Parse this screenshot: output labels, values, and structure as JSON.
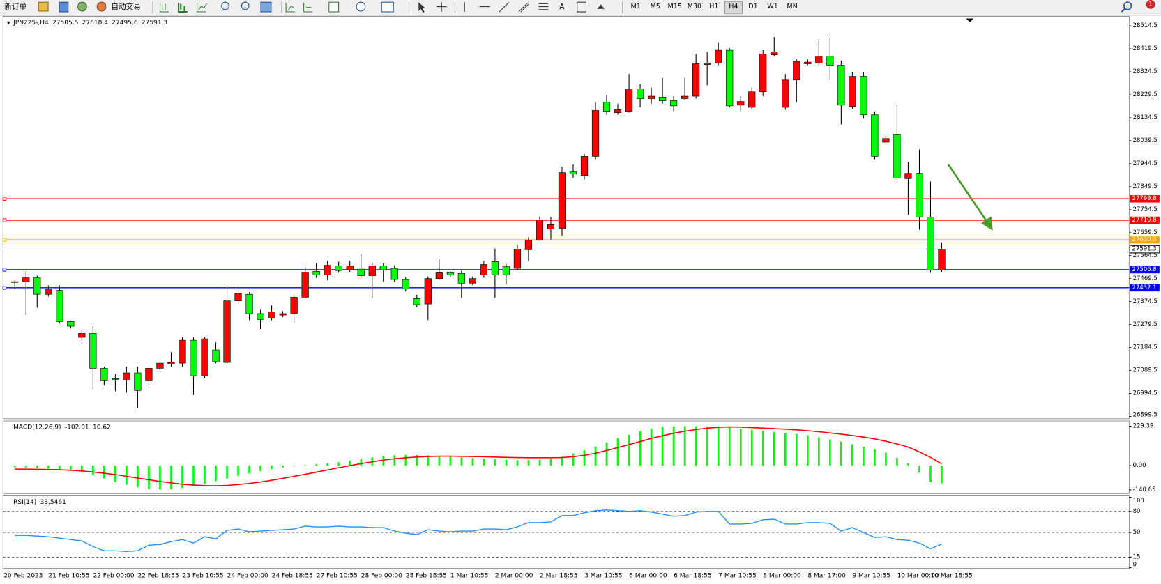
{
  "toolbar": {
    "new_order": "新订单",
    "auto_trading": "自动交易",
    "text_tool": "A",
    "timeframes": [
      "M1",
      "M5",
      "M15",
      "M30",
      "H1",
      "H4",
      "D1",
      "W1",
      "MN"
    ],
    "active_timeframe": "H4",
    "notifications": 1
  },
  "chart_data": [
    {
      "type": "candlestick",
      "title": "JPN225-,H4",
      "up_color": "#ff0000",
      "down_color": "#00ff00",
      "categories": [
        "20 Feb 2023",
        null,
        null,
        null,
        "21 Feb 10:55",
        null,
        null,
        null,
        "22 Feb 00:00",
        null,
        null,
        null,
        "22 Feb 18:55",
        null,
        null,
        null,
        "23 Feb 10:55",
        null,
        null,
        null,
        "24 Feb 00:00",
        null,
        null,
        null,
        "24 Feb 18:55",
        null,
        null,
        null,
        "27 Feb 10:55",
        null,
        null,
        null,
        "28 Feb 00:00",
        null,
        null,
        null,
        "28 Feb 18:55",
        null,
        null,
        null,
        "1 Mar 10:55",
        null,
        null,
        null,
        "2 Mar 00:00",
        null,
        null,
        null,
        "2 Mar 18:55",
        null,
        null,
        null,
        "3 Mar 10:55",
        null,
        null,
        null,
        "6 Mar 00:00",
        null,
        null,
        null,
        "6 Mar 18:55",
        null,
        null,
        null,
        "7 Mar 10:55",
        null,
        null,
        null,
        "8 Mar 00:00",
        null,
        null,
        null,
        "8 Mar 17:00",
        null,
        null,
        null,
        "9 Mar 10:55",
        null,
        null,
        null,
        "10 Mar 00:00",
        null,
        null,
        "10 Mar 18:55"
      ],
      "open": [
        27454,
        27457,
        27473,
        27405,
        27421,
        27292,
        27227,
        27243,
        27099,
        27056,
        27053,
        27080,
        27050,
        27099,
        27117,
        27120,
        27215,
        27068,
        27175,
        27123,
        27378,
        27405,
        27325,
        27307,
        27319,
        27325,
        27393,
        27500,
        27485,
        27522,
        27506,
        27509,
        27482,
        27522,
        27512,
        27466,
        27387,
        27365,
        27470,
        27494,
        27491,
        27451,
        27485,
        27540,
        27519,
        27512,
        27589,
        27629,
        27675,
        27678,
        27911,
        27896,
        27975,
        28199,
        28156,
        28162,
        28254,
        28214,
        28220,
        28205,
        28214,
        28224,
        28355,
        28361,
        28414,
        28187,
        28178,
        28242,
        28395,
        28178,
        28291,
        28358,
        28361,
        28389,
        28352,
        28181,
        28306,
        28147,
        28034,
        28067,
        27883,
        27905,
        27724,
        27505.5
      ],
      "high": [
        27463,
        27500,
        27482,
        27442,
        27442,
        27295,
        27258,
        27273,
        27105,
        27074,
        27105,
        27105,
        27108,
        27126,
        27166,
        27227,
        27227,
        27227,
        27206,
        27442,
        27433,
        27414,
        27341,
        27359,
        27335,
        27402,
        27519,
        27534,
        27543,
        27540,
        27543,
        27571,
        27534,
        27534,
        27525,
        27476,
        27402,
        27479,
        27549,
        27500,
        27503,
        27479,
        27543,
        27595,
        27531,
        27611,
        27641,
        27727,
        27724,
        27932,
        27942,
        27985,
        28199,
        28230,
        28193,
        28316,
        28276,
        28260,
        28300,
        28224,
        28300,
        28398,
        28407,
        28447,
        28423,
        28224,
        28260,
        28414,
        28469,
        28316,
        28377,
        28377,
        28453,
        28463,
        28371,
        28322,
        28322,
        28162,
        28061,
        28187,
        27954,
        28003,
        27871,
        27618.4
      ],
      "low": [
        27427,
        27319,
        27350,
        27396,
        27283,
        27264,
        27212,
        27013,
        27028,
        27004,
        26998,
        26936,
        27028,
        27090,
        27105,
        27105,
        26988,
        27059,
        27120,
        27120,
        27365,
        27298,
        27261,
        27298,
        27310,
        27286,
        27387,
        27473,
        27463,
        27494,
        27497,
        27473,
        27390,
        27457,
        27457,
        27417,
        27353,
        27298,
        27463,
        27476,
        27390,
        27442,
        27473,
        27390,
        27445,
        27506,
        27543,
        27626,
        27632,
        27647,
        27886,
        27880,
        27963,
        28147,
        28147,
        28156,
        28178,
        28193,
        28193,
        28162,
        28208,
        28214,
        28269,
        28352,
        28178,
        28162,
        28168,
        28224,
        28389,
        28168,
        28199,
        28352,
        28352,
        28291,
        28107,
        28172,
        28132,
        27963,
        28024,
        27877,
        27733,
        27672,
        27494,
        27495.6
      ],
      "close": [
        27457,
        27473,
        27405,
        27427,
        27292,
        27273,
        27243,
        27099,
        27050,
        27053,
        27080,
        27007,
        27099,
        27120,
        27123,
        27215,
        27068,
        27221,
        27126,
        27378,
        27408,
        27325,
        27301,
        27332,
        27325,
        27393,
        27497,
        27485,
        27525,
        27503,
        27522,
        27482,
        27522,
        27506,
        27466,
        27427,
        27362,
        27470,
        27494,
        27485,
        27451,
        27470,
        27528,
        27485,
        27485,
        27592,
        27629,
        27712,
        27693,
        27908,
        27902,
        27975,
        28165,
        28162,
        28168,
        28251,
        28214,
        28224,
        28205,
        28184,
        28224,
        28358,
        28361,
        28414,
        28184,
        28202,
        28242,
        28398,
        28407,
        28291,
        28368,
        28365,
        28389,
        28352,
        28187,
        28306,
        28147,
        27975,
        28049,
        27886,
        27905,
        27724,
        27505.5,
        27591.3
      ],
      "ylim": [
        26890.3,
        28554.3
      ],
      "yticks": [
        28514.5,
        28419.5,
        28324.5,
        28229.5,
        28134.5,
        28039.5,
        27944.5,
        27849.5,
        27754.5,
        27659.5,
        27564.5,
        27469.5,
        27374.5,
        27279.5,
        27184.5,
        27089.5,
        26994.5,
        26899.5
      ],
      "levels": [
        {
          "value": 27799.8,
          "color": "#ff0000"
        },
        {
          "value": 27710.8,
          "color": "#ff0000"
        },
        {
          "value": 27630.3,
          "color": "#ffa500"
        },
        {
          "value": 27506.8,
          "color": "#0000ff"
        },
        {
          "value": 27432.1,
          "color": "#0000ff"
        }
      ]
    },
    {
      "type": "macd",
      "title": "MACD(12,26,9)",
      "histogram_color": "#00ff00",
      "signal_color": "#ff0000",
      "histogram": [
        -10,
        -12,
        -14,
        -17,
        -22,
        -28,
        -38,
        -55,
        -75,
        -95,
        -110,
        -125,
        -135,
        -138,
        -136,
        -130,
        -118,
        -105,
        -90,
        -75,
        -60,
        -45,
        -32,
        -20,
        -10,
        -3,
        3,
        8,
        14,
        20,
        28,
        38,
        48,
        55,
        60,
        62,
        62,
        60,
        56,
        52,
        48,
        44,
        40,
        37,
        34,
        32,
        32,
        34,
        40,
        52,
        70,
        90,
        110,
        135,
        160,
        180,
        200,
        215,
        225,
        228,
        229.39,
        229,
        228,
        226,
        222,
        215,
        208,
        202,
        196,
        190,
        184,
        176,
        165,
        152,
        140,
        125,
        110,
        95,
        75,
        45,
        15,
        -40,
        -95,
        -102.01
      ],
      "signal": [
        -20,
        -20,
        -21,
        -22,
        -24,
        -27,
        -31,
        -37,
        -44,
        -52,
        -62,
        -72,
        -82,
        -92,
        -100,
        -108,
        -113,
        -116,
        -117,
        -115,
        -110,
        -103,
        -95,
        -85,
        -74,
        -62,
        -50,
        -38,
        -25,
        -12,
        0,
        12,
        22,
        32,
        40,
        46,
        50,
        53,
        55,
        55,
        54,
        53,
        52,
        50,
        48,
        47,
        46,
        46,
        46,
        47,
        52,
        60,
        72,
        88,
        105,
        122,
        140,
        158,
        174,
        188,
        200,
        210,
        218,
        223,
        225,
        224,
        221,
        218,
        215,
        212,
        208,
        203,
        197,
        190,
        183,
        175,
        166,
        155,
        142,
        126,
        108,
        80,
        48,
        10.62
      ],
      "ylim": [
        -162.2,
        259.5
      ],
      "yticks": [
        229.39,
        {
          "value": 0,
          "label": "0.00"
        },
        -140.65
      ]
    },
    {
      "type": "line",
      "title": "RSI(14)",
      "color": "#1e90ff",
      "values": [
        46,
        46,
        45,
        44,
        42,
        40,
        38,
        30,
        24,
        24,
        23,
        24,
        32,
        33,
        37,
        40,
        35,
        44,
        41,
        53,
        55,
        51,
        52,
        53,
        54,
        55,
        59,
        58,
        58,
        59,
        58,
        58,
        57,
        57,
        52,
        49,
        47,
        54,
        52,
        51,
        52,
        52,
        55,
        55,
        54,
        58,
        64,
        64,
        65,
        74,
        74,
        78,
        81,
        82,
        81,
        80,
        81,
        79,
        76,
        73,
        74,
        79,
        80,
        80,
        62,
        62,
        63,
        68,
        69,
        62,
        62,
        64,
        64,
        63,
        52,
        57,
        50,
        43,
        44,
        40,
        39,
        35,
        27,
        33.5461
      ],
      "ylim": [
        -1.05,
        102.1
      ],
      "yticks": [
        100,
        80,
        50,
        15,
        0
      ],
      "levels": [
        80,
        50,
        15
      ]
    }
  ]
}
